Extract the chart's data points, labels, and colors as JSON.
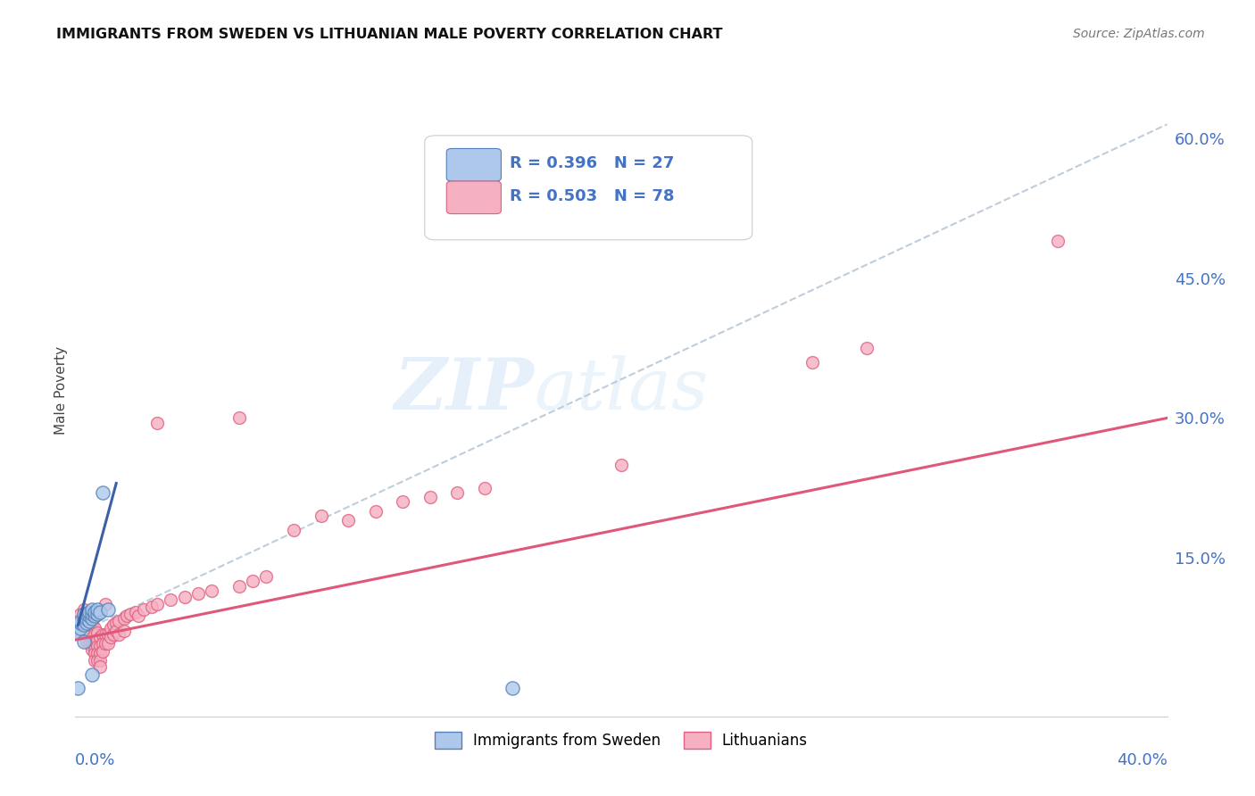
{
  "title": "IMMIGRANTS FROM SWEDEN VS LITHUANIAN MALE POVERTY CORRELATION CHART",
  "source": "Source: ZipAtlas.com",
  "ylabel": "Male Poverty",
  "xlim": [
    0.0,
    0.4
  ],
  "ylim": [
    -0.02,
    0.68
  ],
  "yticks": [
    0.0,
    0.15,
    0.3,
    0.45,
    0.6
  ],
  "ytick_labels": [
    "",
    "15.0%",
    "30.0%",
    "45.0%",
    "60.0%"
  ],
  "sweden_color": "#adc8ea",
  "sweden_edge_color": "#5580b8",
  "lithuanian_color": "#f5b0c2",
  "lithuanian_edge_color": "#e06080",
  "dashed_line_color": "#b8c8d8",
  "sweden_solid_color": "#3a60a8",
  "lithuanian_solid_color": "#e05878",
  "watermark_color": "#ddeeff",
  "sweden_scatter": [
    [
      0.001,
      0.07
    ],
    [
      0.002,
      0.075
    ],
    [
      0.002,
      0.08
    ],
    [
      0.002,
      0.082
    ],
    [
      0.003,
      0.078
    ],
    [
      0.003,
      0.085
    ],
    [
      0.003,
      0.09
    ],
    [
      0.004,
      0.08
    ],
    [
      0.004,
      0.085
    ],
    [
      0.004,
      0.09
    ],
    [
      0.005,
      0.082
    ],
    [
      0.005,
      0.088
    ],
    [
      0.005,
      0.092
    ],
    [
      0.006,
      0.085
    ],
    [
      0.006,
      0.09
    ],
    [
      0.006,
      0.095
    ],
    [
      0.007,
      0.088
    ],
    [
      0.007,
      0.092
    ],
    [
      0.008,
      0.09
    ],
    [
      0.008,
      0.095
    ],
    [
      0.009,
      0.092
    ],
    [
      0.01,
      0.22
    ],
    [
      0.012,
      0.095
    ],
    [
      0.001,
      0.01
    ],
    [
      0.006,
      0.025
    ],
    [
      0.16,
      0.01
    ],
    [
      0.003,
      0.06
    ]
  ],
  "lithuanian_scatter": [
    [
      0.001,
      0.072
    ],
    [
      0.002,
      0.078
    ],
    [
      0.002,
      0.09
    ],
    [
      0.003,
      0.082
    ],
    [
      0.003,
      0.088
    ],
    [
      0.003,
      0.095
    ],
    [
      0.004,
      0.085
    ],
    [
      0.004,
      0.09
    ],
    [
      0.004,
      0.06
    ],
    [
      0.005,
      0.078
    ],
    [
      0.005,
      0.085
    ],
    [
      0.005,
      0.058
    ],
    [
      0.006,
      0.08
    ],
    [
      0.006,
      0.065
    ],
    [
      0.006,
      0.058
    ],
    [
      0.006,
      0.052
    ],
    [
      0.007,
      0.075
    ],
    [
      0.007,
      0.068
    ],
    [
      0.007,
      0.06
    ],
    [
      0.007,
      0.052
    ],
    [
      0.007,
      0.048
    ],
    [
      0.007,
      0.04
    ],
    [
      0.008,
      0.07
    ],
    [
      0.008,
      0.062
    ],
    [
      0.008,
      0.055
    ],
    [
      0.008,
      0.048
    ],
    [
      0.008,
      0.04
    ],
    [
      0.009,
      0.065
    ],
    [
      0.009,
      0.055
    ],
    [
      0.009,
      0.048
    ],
    [
      0.009,
      0.04
    ],
    [
      0.009,
      0.033
    ],
    [
      0.01,
      0.068
    ],
    [
      0.01,
      0.058
    ],
    [
      0.01,
      0.05
    ],
    [
      0.011,
      0.068
    ],
    [
      0.011,
      0.058
    ],
    [
      0.011,
      0.1
    ],
    [
      0.012,
      0.068
    ],
    [
      0.012,
      0.058
    ],
    [
      0.013,
      0.075
    ],
    [
      0.013,
      0.065
    ],
    [
      0.014,
      0.078
    ],
    [
      0.014,
      0.068
    ],
    [
      0.015,
      0.08
    ],
    [
      0.015,
      0.072
    ],
    [
      0.016,
      0.082
    ],
    [
      0.016,
      0.068
    ],
    [
      0.018,
      0.085
    ],
    [
      0.018,
      0.072
    ],
    [
      0.019,
      0.088
    ],
    [
      0.02,
      0.09
    ],
    [
      0.022,
      0.092
    ],
    [
      0.023,
      0.088
    ],
    [
      0.025,
      0.095
    ],
    [
      0.028,
      0.098
    ],
    [
      0.03,
      0.1
    ],
    [
      0.035,
      0.105
    ],
    [
      0.04,
      0.108
    ],
    [
      0.045,
      0.112
    ],
    [
      0.05,
      0.115
    ],
    [
      0.06,
      0.12
    ],
    [
      0.065,
      0.125
    ],
    [
      0.07,
      0.13
    ],
    [
      0.08,
      0.18
    ],
    [
      0.09,
      0.195
    ],
    [
      0.1,
      0.19
    ],
    [
      0.11,
      0.2
    ],
    [
      0.12,
      0.21
    ],
    [
      0.13,
      0.215
    ],
    [
      0.14,
      0.22
    ],
    [
      0.15,
      0.225
    ],
    [
      0.2,
      0.25
    ],
    [
      0.27,
      0.36
    ],
    [
      0.29,
      0.375
    ],
    [
      0.36,
      0.49
    ],
    [
      0.03,
      0.295
    ],
    [
      0.06,
      0.3
    ]
  ],
  "sweden_trendline": [
    [
      0.001,
      0.078
    ],
    [
      0.015,
      0.23
    ]
  ],
  "lithuanian_trendline": [
    [
      0.0,
      0.062
    ],
    [
      0.4,
      0.3
    ]
  ],
  "dashed_trendline": [
    [
      0.0,
      0.068
    ],
    [
      0.4,
      0.615
    ]
  ]
}
